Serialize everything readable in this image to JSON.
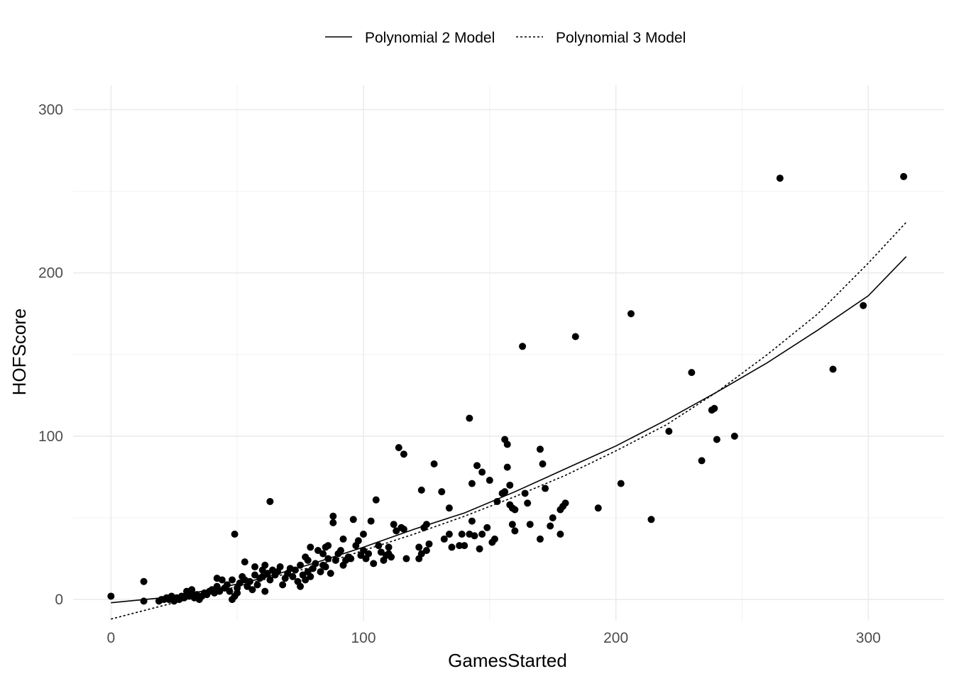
{
  "chart_data": {
    "type": "scatter",
    "xlabel": "GamesStarted",
    "ylabel": "HOFScore",
    "xlim": [
      -15,
      330
    ],
    "ylim": [
      -13,
      315
    ],
    "x_ticks": [
      0,
      100,
      200,
      300
    ],
    "y_ticks": [
      0,
      100,
      200,
      300
    ],
    "grid": true,
    "legend_position": "top",
    "point_color": "#000000",
    "points": [
      [
        0,
        2
      ],
      [
        13,
        -1
      ],
      [
        13,
        11
      ],
      [
        19,
        -1
      ],
      [
        20,
        0
      ],
      [
        21,
        0
      ],
      [
        22,
        1
      ],
      [
        23,
        0
      ],
      [
        24,
        2
      ],
      [
        25,
        -1
      ],
      [
        26,
        1
      ],
      [
        27,
        0
      ],
      [
        28,
        2
      ],
      [
        29,
        1
      ],
      [
        30,
        3
      ],
      [
        30,
        5
      ],
      [
        31,
        2
      ],
      [
        32,
        4
      ],
      [
        32,
        6
      ],
      [
        33,
        1
      ],
      [
        34,
        3
      ],
      [
        35,
        0
      ],
      [
        36,
        2
      ],
      [
        37,
        4
      ],
      [
        38,
        3
      ],
      [
        39,
        5
      ],
      [
        40,
        6
      ],
      [
        41,
        4
      ],
      [
        42,
        8
      ],
      [
        42,
        13
      ],
      [
        43,
        5
      ],
      [
        44,
        12
      ],
      [
        45,
        7
      ],
      [
        46,
        9
      ],
      [
        47,
        5
      ],
      [
        48,
        0
      ],
      [
        48,
        12
      ],
      [
        49,
        2
      ],
      [
        49,
        40
      ],
      [
        50,
        4
      ],
      [
        50,
        7
      ],
      [
        51,
        10
      ],
      [
        52,
        14
      ],
      [
        53,
        12
      ],
      [
        53,
        23
      ],
      [
        54,
        8
      ],
      [
        55,
        11
      ],
      [
        56,
        6
      ],
      [
        57,
        15
      ],
      [
        57,
        20
      ],
      [
        58,
        9
      ],
      [
        59,
        13
      ],
      [
        60,
        18
      ],
      [
        60,
        14
      ],
      [
        61,
        21
      ],
      [
        61,
        5
      ],
      [
        62,
        16
      ],
      [
        63,
        12
      ],
      [
        63,
        60
      ],
      [
        64,
        18
      ],
      [
        65,
        15
      ],
      [
        66,
        17
      ],
      [
        67,
        20
      ],
      [
        68,
        9
      ],
      [
        69,
        13
      ],
      [
        70,
        16
      ],
      [
        71,
        19
      ],
      [
        72,
        14
      ],
      [
        73,
        18
      ],
      [
        74,
        11
      ],
      [
        75,
        8
      ],
      [
        75,
        21
      ],
      [
        76,
        15
      ],
      [
        77,
        12
      ],
      [
        77,
        26
      ],
      [
        78,
        17
      ],
      [
        78,
        24
      ],
      [
        79,
        14
      ],
      [
        79,
        32
      ],
      [
        80,
        19
      ],
      [
        81,
        22
      ],
      [
        82,
        30
      ],
      [
        83,
        17
      ],
      [
        84,
        28
      ],
      [
        84,
        21
      ],
      [
        85,
        32
      ],
      [
        85,
        20
      ],
      [
        86,
        25
      ],
      [
        86,
        33
      ],
      [
        87,
        16
      ],
      [
        88,
        47
      ],
      [
        88,
        51
      ],
      [
        89,
        24
      ],
      [
        90,
        28
      ],
      [
        91,
        30
      ],
      [
        92,
        21
      ],
      [
        92,
        37
      ],
      [
        93,
        24
      ],
      [
        94,
        26
      ],
      [
        95,
        25
      ],
      [
        96,
        49
      ],
      [
        97,
        33
      ],
      [
        98,
        36
      ],
      [
        99,
        27
      ],
      [
        100,
        30
      ],
      [
        100,
        40
      ],
      [
        101,
        25
      ],
      [
        102,
        28
      ],
      [
        103,
        48
      ],
      [
        104,
        22
      ],
      [
        105,
        61
      ],
      [
        106,
        33
      ],
      [
        107,
        29
      ],
      [
        108,
        24
      ],
      [
        109,
        27
      ],
      [
        110,
        32
      ],
      [
        110,
        28
      ],
      [
        111,
        26
      ],
      [
        112,
        46
      ],
      [
        113,
        42
      ],
      [
        114,
        93
      ],
      [
        115,
        44
      ],
      [
        116,
        43
      ],
      [
        116,
        89
      ],
      [
        117,
        25
      ],
      [
        122,
        25
      ],
      [
        122,
        32
      ],
      [
        123,
        67
      ],
      [
        123,
        28
      ],
      [
        124,
        44
      ],
      [
        125,
        30
      ],
      [
        125,
        46
      ],
      [
        126,
        34
      ],
      [
        128,
        83
      ],
      [
        131,
        66
      ],
      [
        132,
        37
      ],
      [
        134,
        40
      ],
      [
        134,
        56
      ],
      [
        135,
        32
      ],
      [
        138,
        33
      ],
      [
        139,
        40
      ],
      [
        140,
        33
      ],
      [
        142,
        111
      ],
      [
        142,
        40
      ],
      [
        143,
        71
      ],
      [
        143,
        48
      ],
      [
        144,
        39
      ],
      [
        145,
        82
      ],
      [
        146,
        31
      ],
      [
        147,
        78
      ],
      [
        147,
        40
      ],
      [
        149,
        44
      ],
      [
        150,
        73
      ],
      [
        151,
        35
      ],
      [
        152,
        37
      ],
      [
        153,
        60
      ],
      [
        155,
        65
      ],
      [
        156,
        98
      ],
      [
        156,
        66
      ],
      [
        157,
        95
      ],
      [
        157,
        81
      ],
      [
        158,
        70
      ],
      [
        158,
        58
      ],
      [
        159,
        56
      ],
      [
        159,
        46
      ],
      [
        160,
        55
      ],
      [
        160,
        42
      ],
      [
        163,
        155
      ],
      [
        164,
        65
      ],
      [
        165,
        59
      ],
      [
        166,
        46
      ],
      [
        170,
        92
      ],
      [
        170,
        37
      ],
      [
        171,
        83
      ],
      [
        172,
        68
      ],
      [
        174,
        45
      ],
      [
        175,
        50
      ],
      [
        178,
        40
      ],
      [
        178,
        55
      ],
      [
        179,
        57
      ],
      [
        180,
        59
      ],
      [
        184,
        161
      ],
      [
        193,
        56
      ],
      [
        202,
        71
      ],
      [
        206,
        175
      ],
      [
        214,
        49
      ],
      [
        221,
        103
      ],
      [
        230,
        139
      ],
      [
        234,
        85
      ],
      [
        238,
        116
      ],
      [
        239,
        117
      ],
      [
        240,
        98
      ],
      [
        247,
        100
      ],
      [
        265,
        258
      ],
      [
        286,
        141
      ],
      [
        298,
        180
      ],
      [
        314,
        259
      ]
    ],
    "series": [
      {
        "name": "Polynomial 2 Model",
        "line_style": "solid",
        "x": [
          0,
          20,
          40,
          60,
          80,
          100,
          120,
          140,
          160,
          180,
          200,
          220,
          240,
          260,
          280,
          300,
          315
        ],
        "values": [
          -2,
          1,
          6,
          13,
          22,
          32,
          43,
          53,
          66,
          80,
          94,
          110,
          127,
          145,
          165,
          186,
          210
        ]
      },
      {
        "name": "Polynomial 3 Model",
        "line_style": "dotted",
        "x": [
          0,
          20,
          40,
          60,
          80,
          100,
          120,
          140,
          160,
          180,
          200,
          220,
          240,
          260,
          280,
          300,
          315
        ],
        "values": [
          -12,
          -4,
          4,
          12,
          20,
          30,
          40,
          51,
          63,
          76,
          91,
          107,
          127,
          150,
          175,
          206,
          231
        ]
      }
    ]
  }
}
